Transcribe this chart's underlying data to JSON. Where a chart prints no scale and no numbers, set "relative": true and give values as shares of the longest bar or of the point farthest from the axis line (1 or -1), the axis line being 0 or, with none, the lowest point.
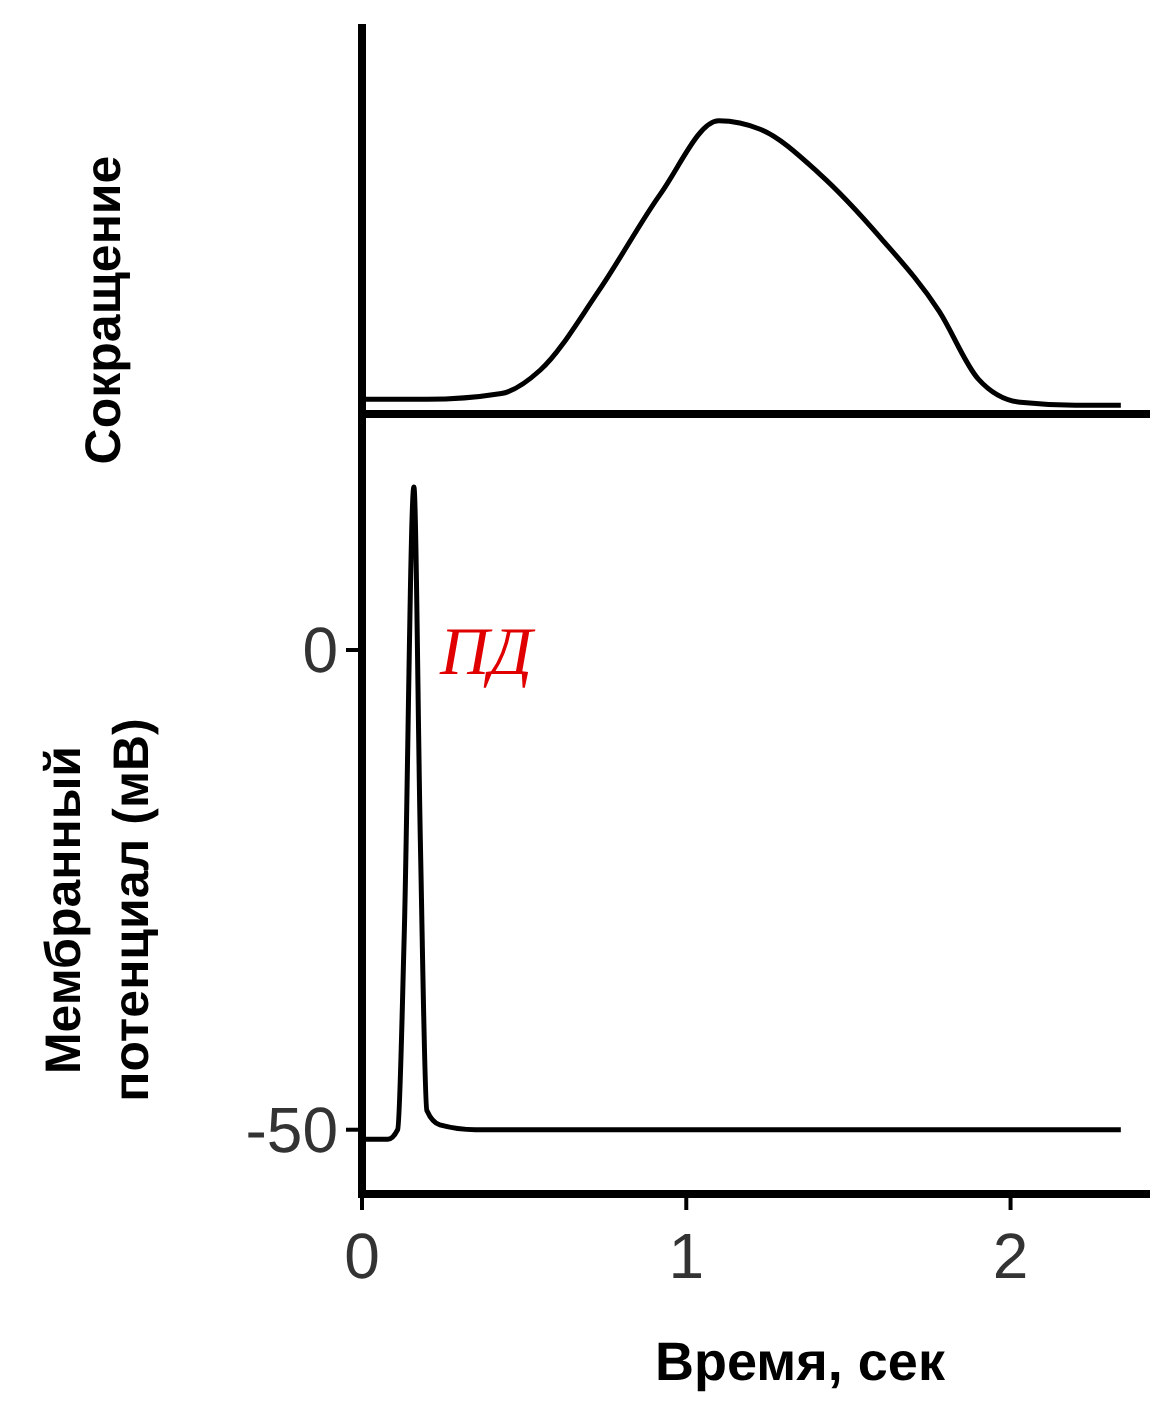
{
  "chart_data": [
    {
      "type": "line",
      "relative": true,
      "ylabel": "Сокращение",
      "xlim": [
        0,
        2.43
      ],
      "series": [
        {
          "color": "#000000",
          "x": [
            0,
            0.2,
            0.43,
            0.55,
            0.73,
            0.92,
            1.1,
            1.23,
            1.41,
            1.6,
            1.78,
            1.9,
            2.03,
            2.2,
            2.34
          ],
          "values": [
            0.05,
            0.05,
            0.07,
            0.15,
            0.42,
            0.75,
            1.0,
            0.97,
            0.82,
            0.6,
            0.35,
            0.12,
            0.04,
            0.03,
            0.03
          ]
        }
      ]
    },
    {
      "type": "line",
      "xlabel": "Время, сек",
      "ylabel": "Мембранный потенциал (мВ)",
      "xlim": [
        0,
        2.43
      ],
      "xticks": [
        0,
        1,
        2
      ],
      "ylim": [
        -56.7,
        24.6
      ],
      "yticks": [
        0,
        -50
      ],
      "annotations": [
        "ПД"
      ],
      "series": [
        {
          "color": "#000000",
          "x": [
            0,
            0.08,
            0.11,
            0.13,
            0.16,
            0.18,
            0.2,
            0.24,
            0.35,
            1.0,
            2.34
          ],
          "values": [
            -51,
            -51,
            -50,
            -30,
            17,
            -20,
            -48,
            -49.5,
            -50,
            -50,
            -50
          ]
        }
      ]
    }
  ]
}
